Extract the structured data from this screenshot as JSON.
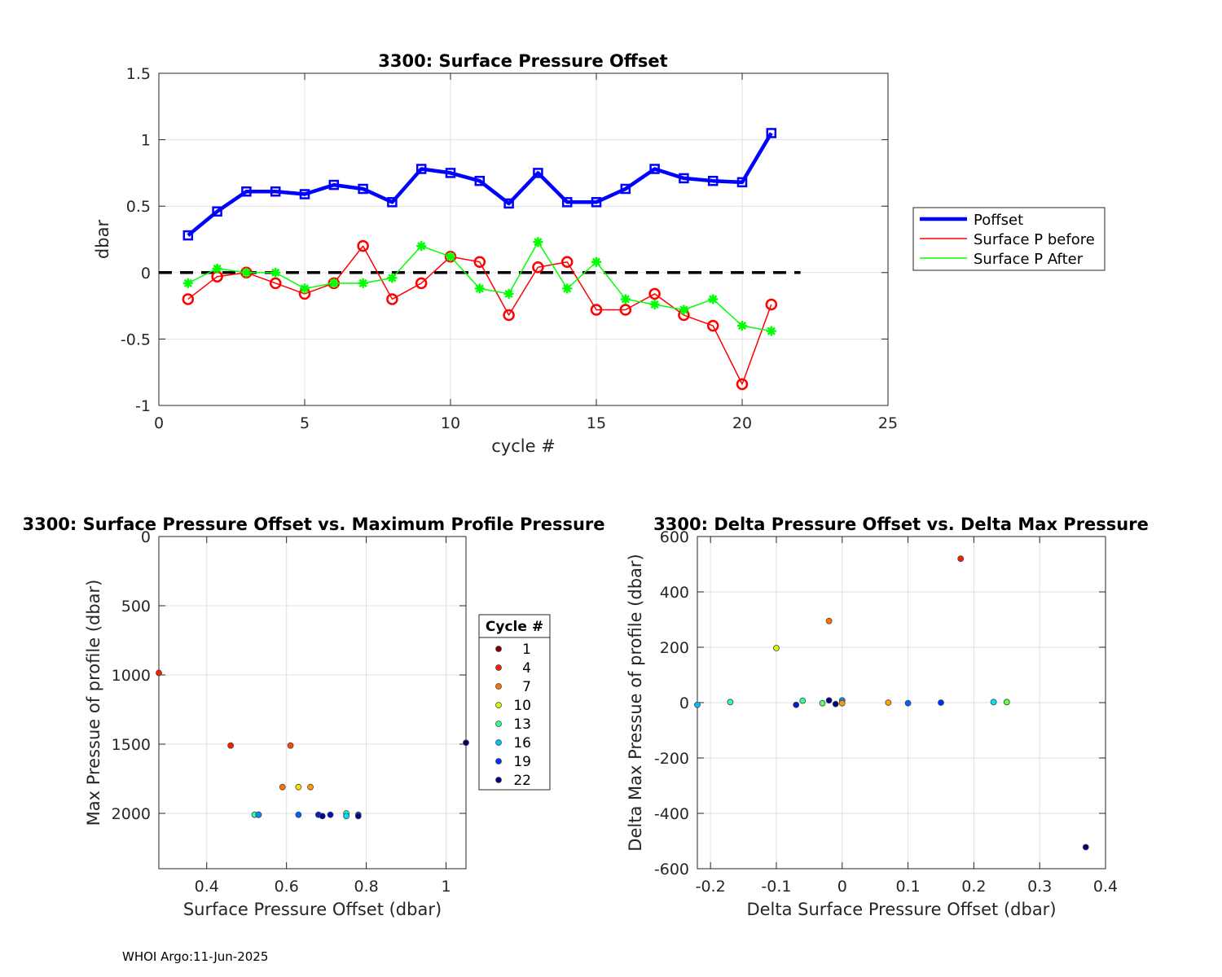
{
  "footer": "WHOI Argo:11-Jun-2025",
  "chart_data": [
    {
      "type": "line",
      "title": "3300: Surface Pressure Offset",
      "xlabel": "cycle #",
      "ylabel": "dbar",
      "xlim": [
        0,
        25
      ],
      "ylim": [
        -1,
        1.5
      ],
      "xticks": [
        0,
        5,
        10,
        15,
        20,
        25
      ],
      "yticks": [
        -1,
        -0.5,
        0,
        0.5,
        1,
        1.5
      ],
      "xtick_labels": [
        "0",
        "5",
        "10",
        "15",
        "20",
        "25"
      ],
      "ytick_labels": [
        "-1",
        "-0.5",
        "0",
        "0.5",
        "1",
        "1.5"
      ],
      "grid": true,
      "legend_position": "right",
      "x": [
        1,
        2,
        3,
        4,
        5,
        6,
        7,
        8,
        9,
        10,
        11,
        12,
        13,
        14,
        15,
        16,
        17,
        18,
        19,
        20,
        21
      ],
      "series": [
        {
          "name": "Poffset",
          "color": "#0000ff",
          "marker": "square",
          "values": [
            0.28,
            0.46,
            0.61,
            0.61,
            0.59,
            0.66,
            0.63,
            0.53,
            0.78,
            0.75,
            0.69,
            0.52,
            0.75,
            0.53,
            0.53,
            0.63,
            0.78,
            0.71,
            0.69,
            0.68,
            1.05
          ]
        },
        {
          "name": "Surface P before",
          "color": "#ff0000",
          "marker": "circle",
          "values": [
            -0.2,
            -0.03,
            0.0,
            -0.08,
            -0.16,
            -0.08,
            0.2,
            -0.2,
            -0.08,
            0.12,
            0.08,
            -0.32,
            0.04,
            0.08,
            -0.28,
            -0.28,
            -0.16,
            -0.32,
            -0.4,
            -0.84,
            -0.24
          ]
        },
        {
          "name": "Surface P After",
          "color": "#00ff00",
          "marker": "star",
          "values": [
            -0.08,
            0.03,
            0.0,
            0.0,
            -0.12,
            -0.08,
            -0.08,
            -0.04,
            0.2,
            0.12,
            -0.12,
            -0.16,
            0.23,
            -0.12,
            0.08,
            -0.2,
            -0.24,
            -0.28,
            -0.2,
            -0.4,
            -0.44
          ]
        }
      ],
      "reference_line": {
        "y": 0,
        "x_range": [
          0,
          22
        ],
        "style": "dashed",
        "color": "#000000"
      }
    },
    {
      "type": "scatter",
      "title": "3300: Surface Pressure Offset vs. Maximum Profile Pressure",
      "xlabel": "Surface Pressure Offset (dbar)",
      "ylabel": "Max Pressue of profile (dbar)",
      "xlim": [
        0.28,
        1.05
      ],
      "ylim": [
        2400,
        0
      ],
      "y_reversed": true,
      "xticks": [
        0.4,
        0.6,
        0.8,
        1
      ],
      "yticks": [
        0,
        500,
        1000,
        1500,
        2000
      ],
      "xtick_labels": [
        "0.4",
        "0.6",
        "0.8",
        "1"
      ],
      "ytick_labels": [
        "0",
        "500",
        "1000",
        "1500",
        "2000"
      ],
      "grid": true,
      "legend_title": "Cycle #",
      "legend": [
        {
          "label": "1",
          "color": "#800000"
        },
        {
          "label": "4",
          "color": "#ff1a00"
        },
        {
          "label": "7",
          "color": "#ff7000"
        },
        {
          "label": "10",
          "color": "#c8ff00"
        },
        {
          "label": "13",
          "color": "#30ff90"
        },
        {
          "label": "16",
          "color": "#00c0ff"
        },
        {
          "label": "19",
          "color": "#0030ff"
        },
        {
          "label": "22",
          "color": "#000080"
        }
      ],
      "points": [
        {
          "x": 0.28,
          "y": 985,
          "color": "#ff1a00"
        },
        {
          "x": 0.46,
          "y": 1510,
          "color": "#ff1a00"
        },
        {
          "x": 0.61,
          "y": 1510,
          "color": "#ff4a00"
        },
        {
          "x": 0.59,
          "y": 1810,
          "color": "#ff7000"
        },
        {
          "x": 0.63,
          "y": 1810,
          "color": "#ffe000"
        },
        {
          "x": 0.66,
          "y": 1810,
          "color": "#ff9a00"
        },
        {
          "x": 0.52,
          "y": 2010,
          "color": "#30ffb0"
        },
        {
          "x": 0.53,
          "y": 2010,
          "color": "#00c0ff"
        },
        {
          "x": 0.53,
          "y": 2010,
          "color": "#0090ff"
        },
        {
          "x": 0.63,
          "y": 2010,
          "color": "#0060ff"
        },
        {
          "x": 0.68,
          "y": 2010,
          "color": "#0020d0"
        },
        {
          "x": 0.69,
          "y": 2020,
          "color": "#000090"
        },
        {
          "x": 0.71,
          "y": 2010,
          "color": "#0010c0"
        },
        {
          "x": 0.75,
          "y": 2000,
          "color": "#00ffd0"
        },
        {
          "x": 0.75,
          "y": 2020,
          "color": "#00e0ff"
        },
        {
          "x": 0.78,
          "y": 2010,
          "color": "#0040ff"
        },
        {
          "x": 0.78,
          "y": 2020,
          "color": "#000090"
        },
        {
          "x": 1.05,
          "y": 1490,
          "color": "#000080"
        }
      ]
    },
    {
      "type": "scatter",
      "title": "3300: Delta Pressure Offset vs. Delta Max Pressure",
      "xlabel": "Delta Surface Pressure Offset (dbar)",
      "ylabel": "Delta Max Pressue of profile (dbar)",
      "xlim": [
        -0.22,
        0.4
      ],
      "ylim": [
        -600,
        600
      ],
      "xticks": [
        -0.2,
        -0.1,
        0,
        0.1,
        0.2,
        0.3,
        0.4
      ],
      "yticks": [
        -600,
        -400,
        -200,
        0,
        200,
        400,
        600
      ],
      "xtick_labels": [
        "-0.2",
        "-0.1",
        "0",
        "0.1",
        "0.2",
        "0.3",
        "0.4"
      ],
      "ytick_labels": [
        "-600",
        "-400",
        "-200",
        "0",
        "200",
        "400",
        "600"
      ],
      "grid": true,
      "points": [
        {
          "x": 0.18,
          "y": 520,
          "color": "#ff1a00"
        },
        {
          "x": -0.02,
          "y": 295,
          "color": "#ff7000"
        },
        {
          "x": -0.1,
          "y": 197,
          "color": "#c8ff00"
        },
        {
          "x": -0.22,
          "y": -8,
          "color": "#00c0ff"
        },
        {
          "x": -0.17,
          "y": 2,
          "color": "#30ffb0"
        },
        {
          "x": -0.07,
          "y": -8,
          "color": "#0020d0"
        },
        {
          "x": -0.06,
          "y": 7,
          "color": "#30ff90"
        },
        {
          "x": -0.03,
          "y": -2,
          "color": "#60ff60"
        },
        {
          "x": -0.02,
          "y": 8,
          "color": "#000090"
        },
        {
          "x": -0.01,
          "y": -5,
          "color": "#000080"
        },
        {
          "x": 0.0,
          "y": 8,
          "color": "#0090ff"
        },
        {
          "x": 0.0,
          "y": -2,
          "color": "#ff9a00"
        },
        {
          "x": 0.07,
          "y": 0,
          "color": "#ffa000"
        },
        {
          "x": 0.1,
          "y": -2,
          "color": "#0060ff"
        },
        {
          "x": 0.15,
          "y": 0,
          "color": "#0030ff"
        },
        {
          "x": 0.23,
          "y": 2,
          "color": "#00e0ff"
        },
        {
          "x": 0.25,
          "y": 2,
          "color": "#60ff40"
        },
        {
          "x": 0.37,
          "y": -522,
          "color": "#000080"
        }
      ]
    }
  ]
}
